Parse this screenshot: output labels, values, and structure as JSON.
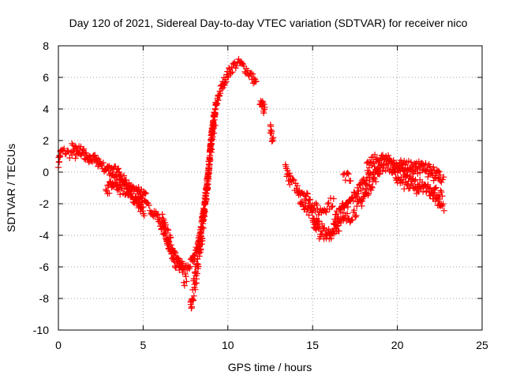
{
  "chart_data": {
    "type": "scatter",
    "title": "Day 120 of 2021, Sidereal Day-to-day VTEC variation (SDTVAR) for receiver nico",
    "xlabel": "GPS time / hours",
    "ylabel": "SDTVAR / TECUs",
    "xlim": [
      0,
      25
    ],
    "ylim": [
      -10,
      8
    ],
    "xticks": [
      0,
      5,
      10,
      15,
      20,
      25
    ],
    "yticks": [
      -10,
      -8,
      -6,
      -4,
      -2,
      0,
      2,
      4,
      6,
      8
    ],
    "grid": true,
    "marker": "+",
    "series": [
      {
        "name": "SDTVAR",
        "color": "#ff0000",
        "note": "each track drawn as a band of '+' markers; points are [hours, TECU]",
        "tracks": [
          {
            "spread": 0.3,
            "points": [
              [
                0.0,
                0.6
              ],
              [
                0.15,
                1.3
              ],
              [
                0.4,
                1.3
              ],
              [
                0.8,
                1.1
              ],
              [
                1.2,
                1.1
              ],
              [
                1.6,
                0.9
              ],
              [
                2.0,
                0.8
              ],
              [
                2.4,
                0.6
              ],
              [
                2.8,
                0.2
              ],
              [
                3.3,
                -0.2
              ],
              [
                3.8,
                -0.6
              ],
              [
                4.3,
                -1.2
              ],
              [
                4.9,
                -1.9
              ],
              [
                5.4,
                -2.3
              ],
              [
                5.8,
                -2.7
              ],
              [
                6.1,
                -3.4
              ],
              [
                6.4,
                -4.2
              ],
              [
                6.7,
                -5.0
              ],
              [
                7.0,
                -5.6
              ],
              [
                7.3,
                -5.9
              ],
              [
                7.6,
                -6.1
              ],
              [
                7.9,
                -5.7
              ],
              [
                8.2,
                -4.8
              ],
              [
                8.5,
                -3.0
              ],
              [
                8.8,
                -0.5
              ],
              [
                9.0,
                1.8
              ],
              [
                9.2,
                3.6
              ],
              [
                9.5,
                5.0
              ],
              [
                9.8,
                5.8
              ],
              [
                10.1,
                6.4
              ],
              [
                10.4,
                6.8
              ],
              [
                10.7,
                6.9
              ],
              [
                11.0,
                6.6
              ],
              [
                11.3,
                6.2
              ],
              [
                11.5,
                5.9
              ],
              [
                11.7,
                5.5
              ]
            ]
          },
          {
            "spread": 0.6,
            "points": [
              [
                6.1,
                -3.1
              ],
              [
                6.4,
                -4.0
              ],
              [
                6.8,
                -5.2
              ],
              [
                7.1,
                -6.0
              ],
              [
                7.4,
                -6.6
              ],
              [
                7.6,
                -6.9
              ]
            ]
          },
          {
            "spread": 0.7,
            "points": [
              [
                7.8,
                -8.3
              ],
              [
                7.95,
                -7.5
              ],
              [
                8.1,
                -6.6
              ],
              [
                8.3,
                -5.4
              ],
              [
                8.5,
                -3.6
              ],
              [
                8.7,
                -1.6
              ],
              [
                8.9,
                0.6
              ],
              [
                9.1,
                2.6
              ],
              [
                9.3,
                3.9
              ]
            ]
          },
          {
            "spread": 0.3,
            "points": [
              [
                0.8,
                1.7
              ],
              [
                1.1,
                1.5
              ],
              [
                1.5,
                1.2
              ],
              [
                1.9,
                1.0
              ],
              [
                2.3,
                0.8
              ],
              [
                2.6,
                0.6
              ]
            ]
          },
          {
            "spread": 0.3,
            "points": [
              [
                2.8,
                0.4
              ],
              [
                3.2,
                0.2
              ],
              [
                3.6,
                -0.1
              ],
              [
                4.0,
                -0.6
              ],
              [
                4.5,
                -1.3
              ],
              [
                5.0,
                -1.9
              ]
            ]
          },
          {
            "spread": 0.25,
            "points": [
              [
                2.9,
                -0.6
              ],
              [
                3.2,
                -0.8
              ],
              [
                3.6,
                -1.0
              ],
              [
                4.1,
                -1.4
              ],
              [
                4.6,
                -1.9
              ],
              [
                5.1,
                -2.6
              ]
            ]
          },
          {
            "spread": 0.35,
            "points": [
              [
                2.8,
                -1.2
              ],
              [
                3.0,
                -1.0
              ],
              [
                3.4,
                -0.9
              ],
              [
                3.7,
                -1.1
              ]
            ]
          },
          {
            "spread": 0.3,
            "points": [
              [
                4.6,
                -0.8
              ],
              [
                4.9,
                -1.2
              ],
              [
                5.2,
                -1.6
              ]
            ]
          },
          {
            "spread": 0.5,
            "points": [
              [
                11.9,
                4.6
              ],
              [
                12.05,
                4.1
              ],
              [
                12.2,
                3.6
              ]
            ]
          },
          {
            "spread": 0.4,
            "points": [
              [
                12.5,
                2.7
              ],
              [
                12.6,
                2.2
              ],
              [
                12.7,
                1.9
              ]
            ]
          },
          {
            "spread": 0.35,
            "points": [
              [
                13.4,
                0.3
              ],
              [
                13.7,
                -0.6
              ],
              [
                14.1,
                -1.0
              ],
              [
                14.5,
                -1.3
              ],
              [
                14.9,
                -1.9
              ],
              [
                15.2,
                -2.3
              ],
              [
                15.4,
                -2.5
              ],
              [
                15.7,
                -2.3
              ],
              [
                16.0,
                -2.0
              ],
              [
                16.3,
                -1.8
              ]
            ]
          },
          {
            "spread": 0.4,
            "points": [
              [
                14.1,
                -1.4
              ],
              [
                14.5,
                -2.0
              ],
              [
                14.9,
                -2.6
              ],
              [
                15.2,
                -3.1
              ],
              [
                15.5,
                -3.6
              ],
              [
                15.8,
                -3.9
              ],
              [
                16.1,
                -3.8
              ],
              [
                16.5,
                -3.4
              ],
              [
                17.0,
                -3.0
              ],
              [
                17.5,
                -2.5
              ],
              [
                17.9,
                -1.8
              ],
              [
                18.3,
                -1.0
              ],
              [
                18.7,
                -0.3
              ],
              [
                19.0,
                0.3
              ],
              [
                19.3,
                0.5
              ],
              [
                19.6,
                0.4
              ]
            ]
          },
          {
            "spread": 0.35,
            "points": [
              [
                15.0,
                -3.2
              ],
              [
                15.4,
                -3.9
              ],
              [
                15.8,
                -4.0
              ],
              [
                16.2,
                -3.6
              ],
              [
                16.6,
                -3.0
              ]
            ]
          },
          {
            "spread": 0.3,
            "points": [
              [
                16.3,
                -2.9
              ],
              [
                16.6,
                -2.5
              ],
              [
                16.9,
                -1.8
              ]
            ]
          },
          {
            "spread": 0.35,
            "points": [
              [
                16.8,
                -2.5
              ],
              [
                17.2,
                -1.9
              ],
              [
                17.6,
                -1.3
              ],
              [
                18.0,
                -0.6
              ],
              [
                18.4,
                0.0
              ],
              [
                18.8,
                0.4
              ],
              [
                19.2,
                0.6
              ],
              [
                19.6,
                0.6
              ],
              [
                20.0,
                0.3
              ],
              [
                20.4,
                -0.2
              ],
              [
                20.8,
                -0.6
              ],
              [
                21.2,
                -0.8
              ],
              [
                21.6,
                -0.8
              ],
              [
                22.0,
                -1.0
              ],
              [
                22.4,
                -1.3
              ],
              [
                22.7,
                -1.6
              ]
            ]
          },
          {
            "spread": 0.3,
            "points": [
              [
                18.2,
                0.3
              ],
              [
                18.6,
                0.8
              ],
              [
                19.0,
                0.9
              ],
              [
                19.4,
                0.8
              ],
              [
                19.8,
                0.6
              ],
              [
                20.2,
                0.4
              ],
              [
                20.6,
                0.2
              ],
              [
                21.0,
                0.1
              ],
              [
                21.4,
                0.2
              ],
              [
                21.8,
                0.0
              ],
              [
                22.2,
                -0.3
              ],
              [
                22.6,
                -0.4
              ],
              [
                22.8,
                -0.5
              ]
            ]
          },
          {
            "spread": 0.3,
            "points": [
              [
                19.6,
                0.3
              ],
              [
                20.0,
                -0.5
              ],
              [
                20.4,
                -0.8
              ],
              [
                20.8,
                -1.0
              ],
              [
                21.2,
                -1.2
              ],
              [
                21.7,
                -1.0
              ],
              [
                22.1,
                -1.4
              ],
              [
                22.5,
                -2.0
              ],
              [
                22.8,
                -2.3
              ]
            ]
          },
          {
            "spread": 0.3,
            "points": [
              [
                20.2,
                0.5
              ],
              [
                20.6,
                0.4
              ],
              [
                21.0,
                0.5
              ],
              [
                21.4,
                0.4
              ],
              [
                21.8,
                0.3
              ],
              [
                22.2,
                0.1
              ],
              [
                22.6,
                -0.1
              ]
            ]
          },
          {
            "spread": 0.3,
            "points": [
              [
                16.8,
                -0.4
              ],
              [
                17.0,
                -0.3
              ],
              [
                17.3,
                -0.4
              ]
            ]
          }
        ]
      }
    ]
  }
}
